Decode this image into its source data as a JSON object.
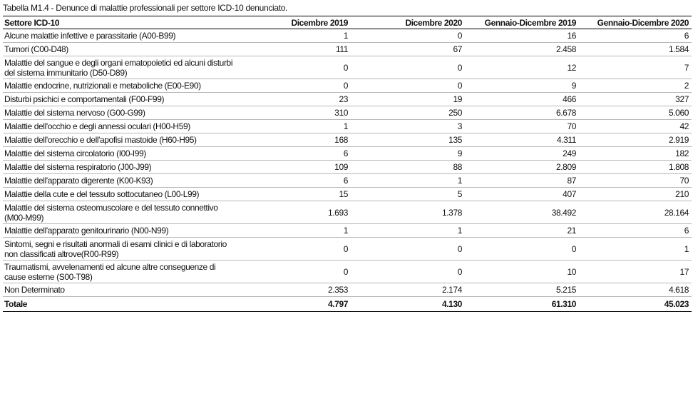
{
  "caption": "Tabella M1.4 - Denunce di malattie professionali per settore ICD-10 denunciato.",
  "columns": [
    "Settore ICD-10",
    "Dicembre 2019",
    "Dicembre 2020",
    "Gennaio-Dicembre 2019",
    "Gennaio-Dicembre 2020"
  ],
  "rows": [
    {
      "label": "Alcune malattie infettive e parassitarie (A00-B99)",
      "v": [
        "1",
        "0",
        "16",
        "6"
      ]
    },
    {
      "label": "Tumori (C00-D48)",
      "v": [
        "111",
        "67",
        "2.458",
        "1.584"
      ]
    },
    {
      "label": "Malattie del sangue e degli organi ematopoietici ed alcuni disturbi del sistema immunitario (D50-D89)",
      "v": [
        "0",
        "0",
        "12",
        "7"
      ]
    },
    {
      "label": "Malattie endocrine, nutrizionali e metaboliche (E00-E90)",
      "v": [
        "0",
        "0",
        "9",
        "2"
      ]
    },
    {
      "label": "Disturbi psichici e comportamentali (F00-F99)",
      "v": [
        "23",
        "19",
        "466",
        "327"
      ]
    },
    {
      "label": "Malattie del sistema nervoso (G00-G99)",
      "v": [
        "310",
        "250",
        "6.678",
        "5.060"
      ]
    },
    {
      "label": "Malattie dell'occhio e degli annessi oculari (H00-H59)",
      "v": [
        "1",
        "3",
        "70",
        "42"
      ]
    },
    {
      "label": "Malattie dell'orecchio e dell'apofisi mastoide (H60-H95)",
      "v": [
        "168",
        "135",
        "4.311",
        "2.919"
      ]
    },
    {
      "label": "Malattie del sistema circolatorio (I00-I99)",
      "v": [
        "6",
        "9",
        "249",
        "182"
      ]
    },
    {
      "label": "Malattie del sistema respiratorio (J00-J99)",
      "v": [
        "109",
        "88",
        "2.809",
        "1.808"
      ]
    },
    {
      "label": "Malattie dell'apparato digerente (K00-K93)",
      "v": [
        "6",
        "1",
        "87",
        "70"
      ]
    },
    {
      "label": "Malattie della cute e del tessuto sottocutaneo (L00-L99)",
      "v": [
        "15",
        "5",
        "407",
        "210"
      ]
    },
    {
      "label": "Malattie del sistema osteomuscolare e del tessuto connettivo (M00-M99)",
      "v": [
        "1.693",
        "1.378",
        "38.492",
        "28.164"
      ]
    },
    {
      "label": "Malattie dell'apparato genitourinario (N00-N99)",
      "v": [
        "1",
        "1",
        "21",
        "6"
      ]
    },
    {
      "label": "Sintomi, segni e risultati anormali di esami clinici e di laboratorio non classificati altrove(R00-R99)",
      "v": [
        "0",
        "0",
        "0",
        "1"
      ]
    },
    {
      "label": "Traumatismi, avvelenamenti ed alcune altre conseguenze di cause esterne (S00-T98)",
      "v": [
        "0",
        "0",
        "10",
        "17"
      ]
    },
    {
      "label": "Non Determinato",
      "v": [
        "2.353",
        "2.174",
        "5.215",
        "4.618"
      ]
    }
  ],
  "total": {
    "label": "Totale",
    "v": [
      "4.797",
      "4.130",
      "61.310",
      "45.023"
    ]
  }
}
